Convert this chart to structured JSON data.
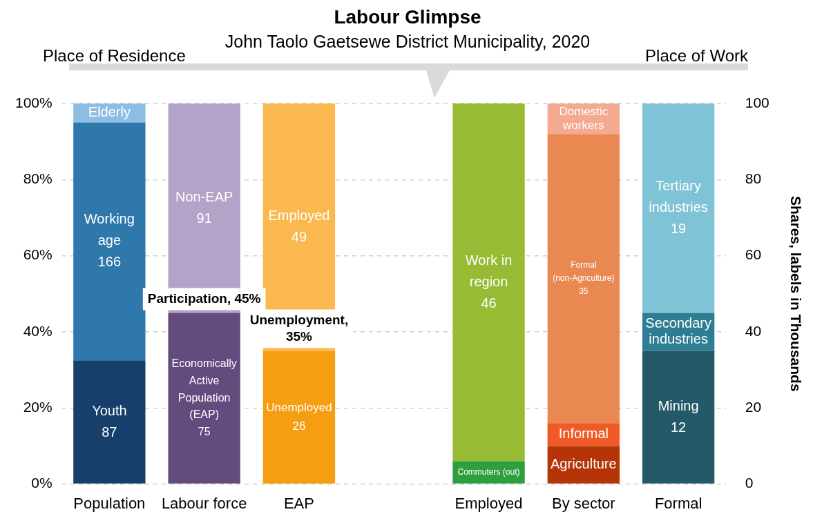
{
  "chart_data": {
    "type": "bar",
    "title": "Labour Glimpse",
    "subtitle": "John Taolo Gaetsewe District Municipality, 2020",
    "y2label": "Shares, labels in Thousands",
    "categories": [
      "Population",
      "Labour force",
      "EAP",
      null,
      "Employed",
      "By sector",
      "Formal"
    ],
    "stacked": true,
    "legend": false,
    "grid": "y",
    "ylim": [
      0,
      100
    ],
    "yticks": [
      {
        "value": 0,
        "label": "0%"
      },
      {
        "value": 20,
        "label": "20%"
      },
      {
        "value": 40,
        "label": "40%"
      },
      {
        "value": 60,
        "label": "60%"
      },
      {
        "value": 80,
        "label": "80%"
      },
      {
        "value": 100,
        "label": "100%"
      }
    ],
    "y2lim": [
      0,
      100
    ],
    "y2ticks": [
      0,
      20,
      40,
      60,
      80,
      100
    ],
    "series": [
      {
        "name": "Youth\n87",
        "color": "#173f6b",
        "values": [
          32.5,
          null,
          null,
          null,
          null,
          null,
          null
        ]
      },
      {
        "name": "Working age\n166",
        "color": "#2e78ab",
        "values": [
          62.5,
          null,
          null,
          null,
          null,
          null,
          null
        ]
      },
      {
        "name": "Elderly",
        "color": "#8dbde3",
        "values": [
          5,
          null,
          null,
          null,
          null,
          null,
          null
        ]
      },
      {
        "name": "Economically Active Population (EAP)\n75",
        "color": "#634b7e",
        "values": [
          null,
          45,
          null,
          null,
          null,
          null,
          null
        ]
      },
      {
        "name": "Non-EAP\n91",
        "color": "#b4a3c8",
        "values": [
          null,
          55,
          null,
          null,
          null,
          null,
          null
        ]
      },
      {
        "name": "Unemployed\n26",
        "color": "#f59e12",
        "values": [
          null,
          null,
          35,
          null,
          null,
          null,
          null
        ]
      },
      {
        "name": "Employed\n49",
        "color": "#fbb84e",
        "values": [
          null,
          null,
          65,
          null,
          null,
          null,
          null
        ]
      },
      {
        "name": "Commuters (out)",
        "color": "#2e9e3e",
        "values": [
          null,
          null,
          null,
          null,
          6,
          null,
          null
        ]
      },
      {
        "name": "Work in region\n46",
        "color": "#98bb35",
        "values": [
          null,
          null,
          null,
          null,
          94,
          null,
          null
        ]
      },
      {
        "name": "Agriculture",
        "color": "#b53509",
        "values": [
          null,
          null,
          null,
          null,
          null,
          10,
          null
        ]
      },
      {
        "name": "Informal",
        "color": "#f05a26",
        "values": [
          null,
          null,
          null,
          null,
          null,
          6,
          null
        ]
      },
      {
        "name": "Formal (non-Agriculture)\n35",
        "color": "#ea8852",
        "values": [
          null,
          null,
          null,
          null,
          null,
          76,
          null
        ]
      },
      {
        "name": "Domestic workers",
        "color": "#f3aa90",
        "values": [
          null,
          null,
          null,
          null,
          null,
          8,
          null
        ]
      },
      {
        "name": "Mining\n12",
        "color": "#245a67",
        "values": [
          null,
          null,
          null,
          null,
          null,
          null,
          35
        ]
      },
      {
        "name": "Secondary industries",
        "color": "#2e7e93",
        "values": [
          null,
          null,
          null,
          null,
          null,
          null,
          10
        ]
      },
      {
        "name": "Tertiary industries\n19",
        "color": "#7ec3d6",
        "values": [
          null,
          null,
          null,
          null,
          null,
          null,
          55
        ]
      }
    ],
    "annotations": [
      "Place of Residence",
      "Place of Work",
      {
        "text": "Participation, 45%",
        "x": "Labour force",
        "y": 45
      },
      {
        "text": "Unemployment, 35%",
        "x": "EAP",
        "y": 35
      }
    ]
  }
}
